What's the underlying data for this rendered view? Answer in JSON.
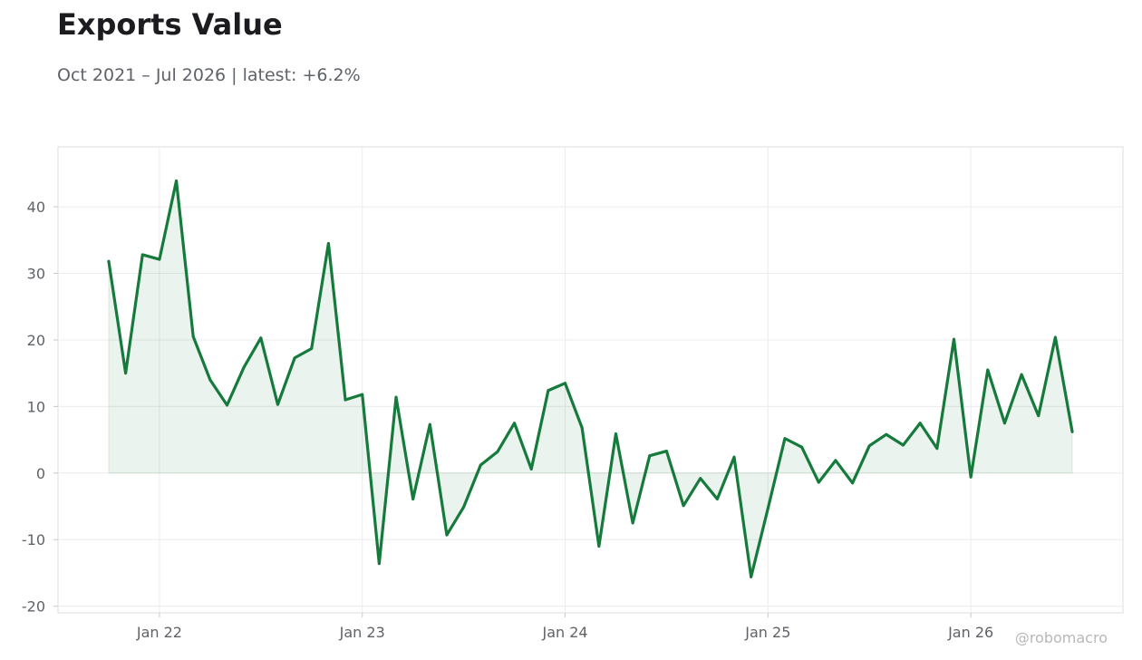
{
  "title": "Exports Value",
  "subtitle": "Oct 2021 – Jul 2026 | latest: +6.2%",
  "watermark": "@robomacro",
  "colors": {
    "line": "#157a3c",
    "fill": "#157a3c",
    "grid": "#ececec",
    "frame": "#dddddd",
    "text": "#5f6368"
  },
  "chart_data": {
    "type": "area",
    "title": "Exports Value",
    "subtitle": "Oct 2021 – Jul 2026 | latest: +6.2%",
    "xlabel": "",
    "ylabel": "",
    "x": [
      "2021-10",
      "2021-11",
      "2021-12",
      "2022-01",
      "2022-02",
      "2022-03",
      "2022-04",
      "2022-05",
      "2022-06",
      "2022-07",
      "2022-08",
      "2022-09",
      "2022-10",
      "2022-11",
      "2022-12",
      "2023-01",
      "2023-02",
      "2023-03",
      "2023-04",
      "2023-05",
      "2023-06",
      "2023-07",
      "2023-08",
      "2023-09",
      "2023-10",
      "2023-11",
      "2023-12",
      "2024-01",
      "2024-02",
      "2024-03",
      "2024-04",
      "2024-05",
      "2024-06",
      "2024-07",
      "2024-08",
      "2024-09",
      "2024-10",
      "2024-11",
      "2024-12",
      "2025-01",
      "2025-02",
      "2025-03",
      "2025-04",
      "2025-05",
      "2025-06",
      "2025-07",
      "2025-08",
      "2025-09",
      "2025-10",
      "2025-11",
      "2025-12",
      "2026-01",
      "2026-02",
      "2026-03",
      "2026-04",
      "2026-05",
      "2026-06",
      "2026-07"
    ],
    "values": [
      31.8,
      15.0,
      32.8,
      32.1,
      43.9,
      20.5,
      14.0,
      10.2,
      15.9,
      20.3,
      10.3,
      17.3,
      18.7,
      34.5,
      11.0,
      11.8,
      -13.6,
      11.4,
      -3.9,
      7.3,
      -9.3,
      -5.1,
      1.2,
      3.2,
      7.5,
      0.6,
      12.4,
      13.5,
      6.8,
      -11.0,
      5.9,
      -7.5,
      2.6,
      3.3,
      -4.9,
      -0.8,
      -3.9,
      2.4,
      -15.6,
      -5.3,
      5.2,
      3.9,
      -1.4,
      1.9,
      -1.5,
      4.1,
      5.8,
      4.2,
      7.5,
      3.7,
      20.1,
      -0.6,
      15.5,
      7.5,
      14.8,
      8.6,
      20.4,
      6.2
    ],
    "ylim": [
      -21,
      49
    ],
    "y_ticks": [
      -20,
      -10,
      0,
      10,
      20,
      30,
      40
    ],
    "y_tick_labels": [
      "-20",
      "-10",
      "0",
      "10",
      "20",
      "30",
      "40"
    ],
    "x_ticks": [
      "2022-01",
      "2023-01",
      "2024-01",
      "2025-01",
      "2026-01"
    ],
    "x_tick_labels": [
      "Jan 22",
      "Jan 23",
      "Jan 24",
      "Jan 25",
      "Jan 26"
    ],
    "xlim": [
      "2021-07",
      "2026-10"
    ],
    "fill_to_zero": true,
    "grid": true,
    "legend": "none"
  }
}
